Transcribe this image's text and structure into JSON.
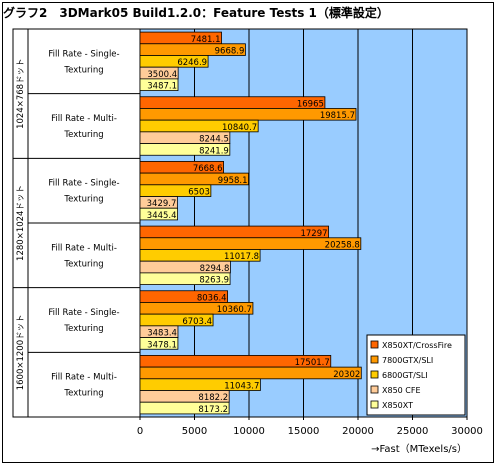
{
  "chart_data": {
    "type": "bar",
    "orientation": "horizontal",
    "title": "グラフ2　3DMark05 Build1.2.0：Feature Tests 1（標準設定）",
    "xlabel": "→Fast（MTexels/s）",
    "xlim": [
      0,
      30000
    ],
    "xticks": [
      "0",
      "5000",
      "10000",
      "15000",
      "20000",
      "25000",
      "30000"
    ],
    "legend_position": "bottom-right",
    "groups": [
      {
        "resolution": "1024×768ドット",
        "tests": [
          {
            "label_lines": [
              "Fill Rate - Single-",
              "Texturing"
            ],
            "values": [
              7481.1,
              9668.9,
              6246.9,
              3500.4,
              3487.1
            ],
            "labels": [
              "7481.1",
              "9668.9",
              "6246.9",
              "3500.4",
              "3487.1"
            ]
          },
          {
            "label_lines": [
              "Fill Rate - Multi-",
              "Texturing"
            ],
            "values": [
              16965,
              19815.7,
              10840.7,
              8244.5,
              8241.9
            ],
            "labels": [
              "16965",
              "19815.7",
              "10840.7",
              "8244.5",
              "8241.9"
            ]
          }
        ]
      },
      {
        "resolution": "1280×1024ドット",
        "tests": [
          {
            "label_lines": [
              "Fill Rate - Single-",
              "Texturing"
            ],
            "values": [
              7668.6,
              9958.1,
              6503,
              3429.7,
              3445.4
            ],
            "labels": [
              "7668.6",
              "9958.1",
              "6503",
              "3429.7",
              "3445.4"
            ]
          },
          {
            "label_lines": [
              "Fill Rate - Multi-",
              "Texturing"
            ],
            "values": [
              17297,
              20258.8,
              11017.8,
              8294.8,
              8263.9
            ],
            "labels": [
              "17297",
              "20258.8",
              "11017.8",
              "8294.8",
              "8263.9"
            ]
          }
        ]
      },
      {
        "resolution": "1600×1200ドット",
        "tests": [
          {
            "label_lines": [
              "Fill Rate - Single-",
              "Texturing"
            ],
            "values": [
              8036.4,
              10360.7,
              6703.4,
              3483.4,
              3478.1
            ],
            "labels": [
              "8036.4",
              "10360.7",
              "6703.4",
              "3483.4",
              "3478.1"
            ]
          },
          {
            "label_lines": [
              "Fill Rate - Multi-",
              "Texturing"
            ],
            "values": [
              17501.7,
              20302,
              11043.7,
              8182.2,
              8173.2
            ],
            "labels": [
              "17501.7",
              "20302",
              "11043.7",
              "8182.2",
              "8173.2"
            ]
          }
        ]
      }
    ],
    "series": [
      {
        "name": "X850XT/CrossFire",
        "color": "#ff6600"
      },
      {
        "name": "7800GTX/SLI",
        "color": "#ff9900"
      },
      {
        "name": "6800GT/SLI",
        "color": "#ffcc00"
      },
      {
        "name": "X850 CFE",
        "color": "#ffcc99"
      },
      {
        "name": "X850XT",
        "color": "#ffff99"
      }
    ],
    "plot_background": "#99ccff",
    "grid": true
  }
}
